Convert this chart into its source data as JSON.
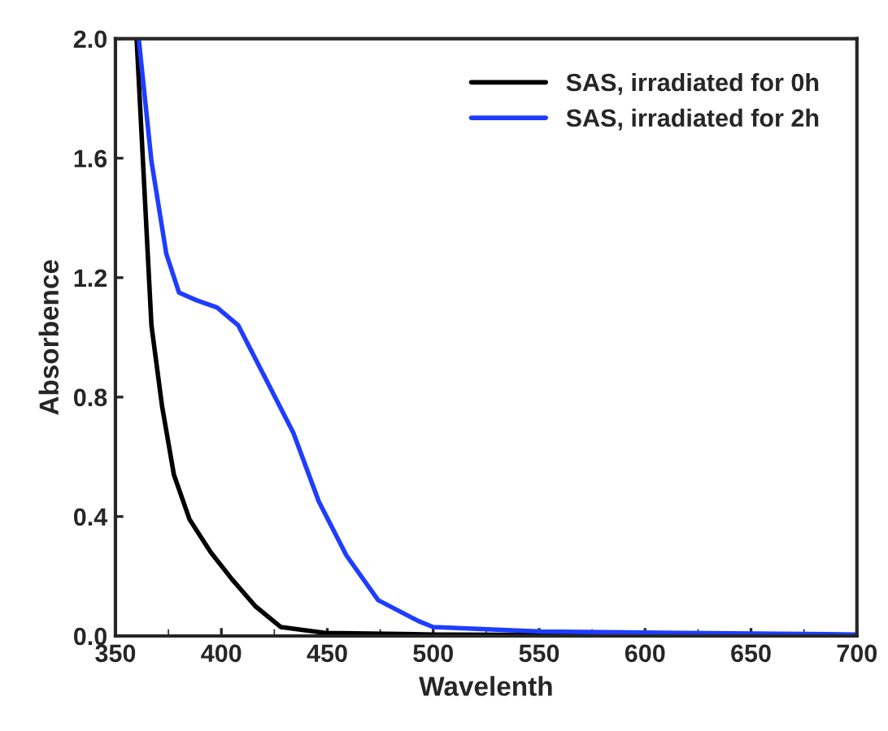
{
  "chart_data": {
    "type": "line",
    "xlabel": "Wavelenth",
    "ylabel": "Absorbence",
    "xlim": [
      350,
      700
    ],
    "ylim": [
      0,
      2.0
    ],
    "xticks": [
      350,
      400,
      450,
      500,
      550,
      600,
      650,
      700
    ],
    "yticks": [
      {
        "value": 0,
        "label": "0.0"
      },
      {
        "value": 0.4,
        "label": "0.4"
      },
      {
        "value": 0.8,
        "label": "0.8"
      },
      {
        "value": 1.2,
        "label": "1.2"
      },
      {
        "value": 1.6,
        "label": "1.6"
      },
      {
        "value": 2.0,
        "label": "2.0"
      }
    ],
    "legend": "top right",
    "grid": false,
    "marker": "none",
    "line_style": "solid",
    "series": [
      {
        "name": "SAS, irradiated for 0h",
        "color": "#000000",
        "x": [
          360,
          367,
          372,
          377.6,
          385,
          395,
          405,
          416,
          428,
          449,
          500,
          600,
          700
        ],
        "values": [
          2.0,
          1.04,
          0.77,
          0.54,
          0.39,
          0.28,
          0.19,
          0.1,
          0.03,
          0.01,
          0.005,
          0.002,
          0.0
        ]
      },
      {
        "name": "SAS, irradiated for 2h",
        "color": "#1f3dff",
        "x": [
          361,
          367,
          374,
          380,
          388,
          398,
          408,
          421,
          434,
          446,
          459,
          474,
          493,
          500,
          551,
          617,
          700
        ],
        "values": [
          2.0,
          1.59,
          1.28,
          1.15,
          1.125,
          1.1,
          1.04,
          0.86,
          0.68,
          0.45,
          0.27,
          0.12,
          0.05,
          0.03,
          0.015,
          0.01,
          0.005
        ]
      }
    ]
  }
}
